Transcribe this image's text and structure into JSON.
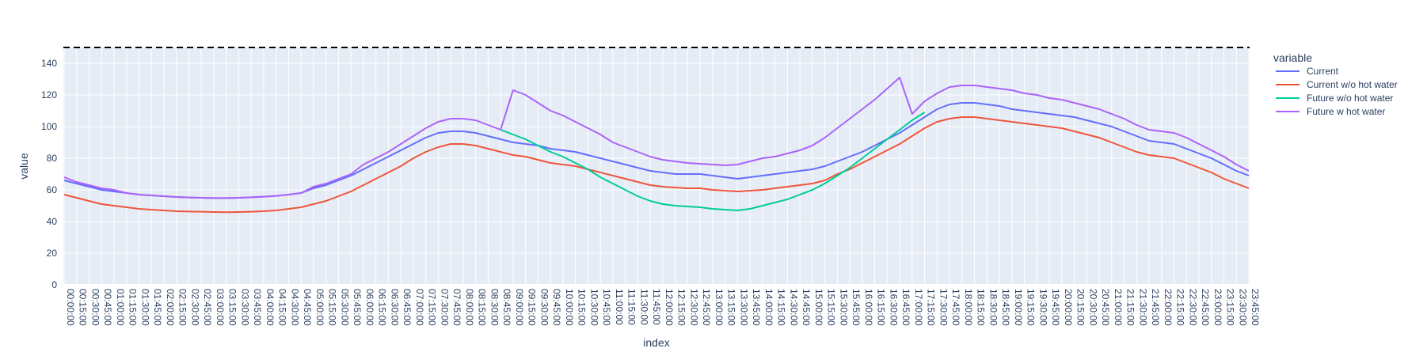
{
  "chart_data": {
    "type": "line",
    "xlabel": "index",
    "ylabel": "value",
    "ylim": [
      0,
      150
    ],
    "yticks": [
      0,
      20,
      40,
      60,
      80,
      100,
      120,
      140
    ],
    "grid": true,
    "legend_title": "variable",
    "legend_position": "right",
    "reference_line": {
      "y": 150,
      "style": "dashed",
      "color": "#000000"
    },
    "x": [
      "00:00:00",
      "00:15:00",
      "00:30:00",
      "00:45:00",
      "01:00:00",
      "01:15:00",
      "01:30:00",
      "01:45:00",
      "02:00:00",
      "02:15:00",
      "02:30:00",
      "02:45:00",
      "03:00:00",
      "03:15:00",
      "03:30:00",
      "03:45:00",
      "04:00:00",
      "04:15:00",
      "04:30:00",
      "04:45:00",
      "05:00:00",
      "05:15:00",
      "05:30:00",
      "05:45:00",
      "06:00:00",
      "06:15:00",
      "06:30:00",
      "06:45:00",
      "07:00:00",
      "07:15:00",
      "07:30:00",
      "07:45:00",
      "08:00:00",
      "08:15:00",
      "08:30:00",
      "08:45:00",
      "09:00:00",
      "09:15:00",
      "09:30:00",
      "09:45:00",
      "10:00:00",
      "10:15:00",
      "10:30:00",
      "10:45:00",
      "11:00:00",
      "11:15:00",
      "11:30:00",
      "11:45:00",
      "12:00:00",
      "12:15:00",
      "12:30:00",
      "12:45:00",
      "13:00:00",
      "13:15:00",
      "13:30:00",
      "13:45:00",
      "14:00:00",
      "14:15:00",
      "14:30:00",
      "14:45:00",
      "15:00:00",
      "15:15:00",
      "15:30:00",
      "15:45:00",
      "16:00:00",
      "16:15:00",
      "16:30:00",
      "16:45:00",
      "17:00:00",
      "17:15:00",
      "17:30:00",
      "17:45:00",
      "18:00:00",
      "18:15:00",
      "18:30:00",
      "18:45:00",
      "19:00:00",
      "19:15:00",
      "19:30:00",
      "19:45:00",
      "20:00:00",
      "20:15:00",
      "20:30:00",
      "20:45:00",
      "21:00:00",
      "21:15:00",
      "21:30:00",
      "21:45:00",
      "22:00:00",
      "22:15:00",
      "22:30:00",
      "22:45:00",
      "23:00:00",
      "23:15:00",
      "23:30:00",
      "23:45:00"
    ],
    "series": [
      {
        "name": "Current",
        "color": "#636efa",
        "values": [
          66,
          64,
          62,
          60,
          59,
          58,
          57,
          56.5,
          56,
          55.5,
          55.2,
          55,
          54.8,
          54.8,
          55,
          55.3,
          55.7,
          56.2,
          57,
          58,
          61,
          63,
          66,
          69,
          73,
          77,
          81,
          85,
          89,
          93,
          96,
          97,
          97,
          96,
          94,
          92,
          90,
          89,
          88,
          86,
          85,
          84,
          82,
          80,
          78,
          76,
          74,
          72,
          71,
          70,
          70,
          70,
          69,
          68,
          67,
          68,
          69,
          70,
          71,
          72,
          73,
          75,
          78,
          81,
          84,
          88,
          92,
          96,
          101,
          106,
          111,
          114,
          115,
          115,
          114,
          113,
          111,
          110,
          109,
          108,
          107,
          106,
          104,
          102,
          100,
          97,
          94,
          91,
          90,
          89,
          86,
          83,
          80,
          76,
          72,
          69
        ]
      },
      {
        "name": "Current w/o hot water",
        "color": "#ef553b",
        "values": [
          57,
          55,
          53,
          51,
          50,
          49,
          48,
          47.5,
          47,
          46.5,
          46.3,
          46.2,
          46,
          45.9,
          46,
          46.2,
          46.5,
          47,
          48,
          49,
          51,
          53,
          56,
          59,
          63,
          67,
          71,
          75,
          80,
          84,
          87,
          89,
          89,
          88,
          86,
          84,
          82,
          81,
          79,
          77,
          76,
          75,
          73,
          71,
          69,
          67,
          65,
          63,
          62,
          61.5,
          61,
          61,
          60,
          59.5,
          59,
          59.5,
          60,
          61,
          62,
          63,
          64,
          66,
          70,
          73,
          77,
          81,
          85,
          89,
          94,
          99,
          103,
          105,
          106,
          106,
          105,
          104,
          103,
          102,
          101,
          100,
          99,
          97,
          95,
          93,
          90,
          87,
          84,
          82,
          81,
          80,
          77,
          74,
          71,
          67,
          64,
          61
        ]
      },
      {
        "name": "Future w/o hot water",
        "color": "#00cc96",
        "values": [
          null,
          null,
          null,
          null,
          null,
          null,
          null,
          null,
          null,
          null,
          null,
          null,
          null,
          null,
          null,
          null,
          null,
          null,
          null,
          null,
          null,
          null,
          null,
          null,
          null,
          null,
          null,
          null,
          null,
          null,
          null,
          null,
          null,
          null,
          null,
          98,
          95,
          92,
          88,
          84,
          81,
          77,
          73,
          68,
          64,
          60,
          56,
          53,
          51,
          50,
          49.5,
          49,
          48,
          47.5,
          47,
          48,
          50,
          52,
          54,
          57,
          60,
          64,
          69,
          74,
          80,
          86,
          92,
          98,
          104,
          109,
          null,
          null,
          null,
          null,
          null,
          null,
          null,
          null,
          null,
          null,
          null,
          null,
          null,
          null,
          null,
          null,
          null,
          null,
          null,
          null,
          null,
          null,
          null,
          null,
          null,
          null
        ]
      },
      {
        "name": "Future w hot water",
        "color": "#ab63fa",
        "values": [
          68,
          65,
          63,
          61,
          60,
          58,
          57,
          56.5,
          56,
          55.5,
          55.2,
          55,
          54.8,
          54.8,
          55,
          55.3,
          55.7,
          56.2,
          57,
          58,
          62,
          64,
          67,
          70,
          76,
          80,
          84,
          89,
          94,
          99,
          103,
          105,
          105,
          104,
          101,
          98,
          123,
          120,
          115,
          110,
          107,
          103,
          99,
          95,
          90,
          87,
          84,
          81,
          79,
          78,
          77,
          76.5,
          76,
          75.5,
          76,
          78,
          80,
          81,
          83,
          85,
          88,
          93,
          99,
          105,
          111,
          117,
          124,
          131,
          108,
          116,
          121,
          125,
          126,
          126,
          125,
          124,
          123,
          121,
          120,
          118,
          117,
          115,
          113,
          111,
          108,
          105,
          101,
          98,
          97,
          96,
          93,
          89,
          85,
          81,
          76,
          72
        ]
      }
    ]
  }
}
